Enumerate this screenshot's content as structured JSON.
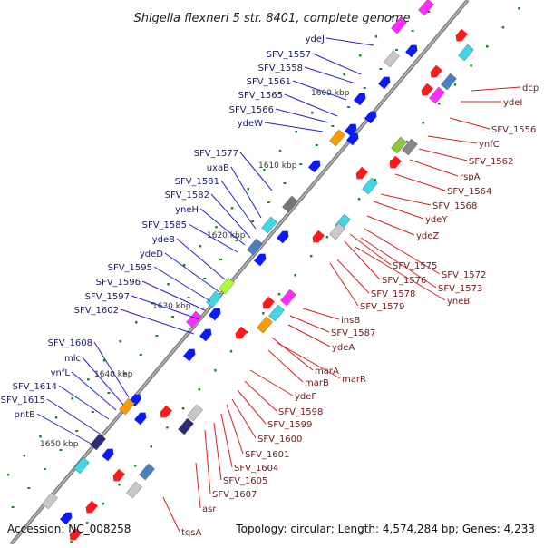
{
  "title": "Shigella flexneri 5 str. 8401, complete genome",
  "footer": {
    "accession": "Accession: NC_008258",
    "summary": "Topology: circular; Length: 4,574,284 bp; Genes: 4,233"
  },
  "colors": {
    "forward_label": "#1f1fd6",
    "reverse_label": "#d61f1f",
    "forward_gene": "#0a1aff",
    "reverse_gene": "#ff1a1a",
    "backbone": "#7a7a7a",
    "tick": "#1a8c1a"
  },
  "scale_ticks": [
    "1600 kbp",
    "1610 kbp",
    "1620 kbp",
    "1630 kbp",
    "1640 kbp",
    "1650 kbp"
  ],
  "forward_labels": [
    "ydeJ",
    "SFV_1557",
    "SFV_1558",
    "SFV_1561",
    "SFV_1565",
    "SFV_1566",
    "ydeW",
    "SFV_1577",
    "uxaB",
    "SFV_1581",
    "SFV_1582",
    "yneH",
    "SFV_1585",
    "ydeB",
    "ydeD",
    "SFV_1595",
    "SFV_1596",
    "SFV_1597",
    "SFV_1602",
    "SFV_1608",
    "mlc",
    "ynfL",
    "SFV_1614",
    "SFV_1615",
    "pntB"
  ],
  "reverse_labels": [
    "dcp",
    "ydeI",
    "SFV_1556",
    "ynfC",
    "SFV_1562",
    "rspA",
    "SFV_1564",
    "SFV_1568",
    "ydeY",
    "ydeZ",
    "SFV_1575",
    "SFV_1576",
    "SFV_1572",
    "SFV_1573",
    "SFV_1578",
    "yneB",
    "SFV_1579",
    "insB",
    "SFV_1587",
    "ydeA",
    "marA",
    "marR",
    "marB",
    "ydeF",
    "SFV_1598",
    "SFV_1599",
    "SFV_1600",
    "SFV_1601",
    "SFV_1604",
    "SFV_1605",
    "SFV_1607",
    "asr",
    "tqsA"
  ]
}
